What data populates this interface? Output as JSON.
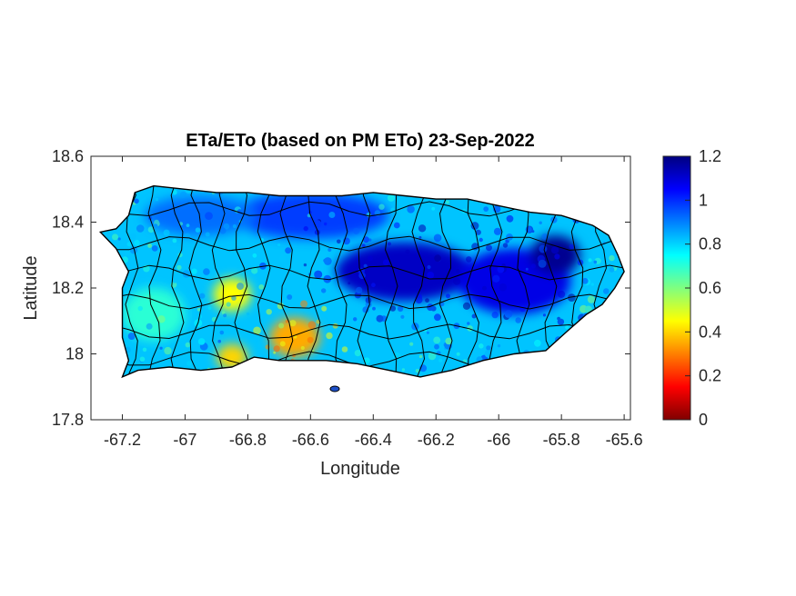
{
  "chart_data": {
    "type": "heatmap",
    "title": "ETa/ETo (based on PM ETo) 23-Sep-2022",
    "xlabel": "Longitude",
    "ylabel": "Latitude",
    "xlim": [
      -67.3,
      -65.58
    ],
    "ylim": [
      17.8,
      18.6
    ],
    "xticks": [
      -67.2,
      -67,
      -66.8,
      -66.6,
      -66.4,
      -66.2,
      -66,
      -65.8,
      -65.6
    ],
    "xtick_labels": [
      "-67.2",
      "-67",
      "-66.8",
      "-66.6",
      "-66.4",
      "-66.2",
      "-66",
      "-65.8",
      "-65.6"
    ],
    "yticks": [
      17.8,
      18,
      18.2,
      18.4,
      18.6
    ],
    "ytick_labels": [
      "17.8",
      "18",
      "18.2",
      "18.4",
      "18.6"
    ],
    "grid": false,
    "colormap": "jet",
    "color_range": [
      0,
      1.2
    ],
    "colorbar_ticks": [
      0,
      0.2,
      0.4,
      0.6,
      0.8,
      1,
      1.2
    ],
    "colorbar_tick_labels": [
      "0",
      "0.2",
      "0.4",
      "0.6",
      "0.8",
      "1",
      "1.2"
    ],
    "colorbar_position": "right",
    "region": "Puerto Rico with municipality boundaries",
    "island_outline": [
      [
        -67.27,
        18.37
      ],
      [
        -67.22,
        18.38
      ],
      [
        -67.18,
        18.42
      ],
      [
        -67.16,
        18.49
      ],
      [
        -67.1,
        18.51
      ],
      [
        -67.0,
        18.5
      ],
      [
        -66.9,
        18.49
      ],
      [
        -66.8,
        18.49
      ],
      [
        -66.7,
        18.48
      ],
      [
        -66.6,
        18.48
      ],
      [
        -66.5,
        18.48
      ],
      [
        -66.4,
        18.49
      ],
      [
        -66.3,
        18.48
      ],
      [
        -66.2,
        18.47
      ],
      [
        -66.1,
        18.47
      ],
      [
        -66.0,
        18.45
      ],
      [
        -65.95,
        18.44
      ],
      [
        -65.9,
        18.43
      ],
      [
        -65.8,
        18.42
      ],
      [
        -65.7,
        18.39
      ],
      [
        -65.65,
        18.36
      ],
      [
        -65.62,
        18.3
      ],
      [
        -65.6,
        18.25
      ],
      [
        -65.63,
        18.2
      ],
      [
        -65.67,
        18.15
      ],
      [
        -65.72,
        18.12
      ],
      [
        -65.78,
        18.07
      ],
      [
        -65.85,
        18.01
      ],
      [
        -65.95,
        18.0
      ],
      [
        -66.05,
        17.98
      ],
      [
        -66.15,
        17.95
      ],
      [
        -66.25,
        17.93
      ],
      [
        -66.35,
        17.95
      ],
      [
        -66.45,
        17.97
      ],
      [
        -66.55,
        17.98
      ],
      [
        -66.62,
        17.98
      ],
      [
        -66.7,
        17.98
      ],
      [
        -66.78,
        17.99
      ],
      [
        -66.85,
        17.96
      ],
      [
        -66.95,
        17.95
      ],
      [
        -67.05,
        17.96
      ],
      [
        -67.15,
        17.95
      ],
      [
        -67.2,
        17.93
      ],
      [
        -67.18,
        17.98
      ],
      [
        -67.2,
        18.05
      ],
      [
        -67.2,
        18.12
      ],
      [
        -67.2,
        18.2
      ],
      [
        -67.18,
        18.25
      ],
      [
        -67.22,
        18.32
      ],
      [
        -67.27,
        18.37
      ]
    ],
    "value_zones": [
      {
        "lon": -66.3,
        "lat": 18.25,
        "rlon": 0.22,
        "rlat": 0.09,
        "value": 1.12
      },
      {
        "lon": -65.95,
        "lat": 18.22,
        "rlon": 0.18,
        "rlat": 0.1,
        "value": 1.08
      },
      {
        "lon": -65.82,
        "lat": 18.3,
        "rlon": 0.08,
        "rlat": 0.06,
        "value": 1.18
      },
      {
        "lon": -66.6,
        "lat": 18.42,
        "rlon": 0.25,
        "rlat": 0.07,
        "value": 0.98
      },
      {
        "lon": -66.95,
        "lat": 18.42,
        "rlon": 0.18,
        "rlat": 0.06,
        "value": 0.92
      },
      {
        "lon": -66.65,
        "lat": 18.05,
        "rlon": 0.08,
        "rlat": 0.06,
        "value": 0.35
      },
      {
        "lon": -66.85,
        "lat": 17.99,
        "rlon": 0.05,
        "rlat": 0.04,
        "value": 0.4
      },
      {
        "lon": -67.1,
        "lat": 18.12,
        "rlon": 0.1,
        "rlat": 0.08,
        "value": 0.7
      },
      {
        "lon": -66.85,
        "lat": 18.18,
        "rlon": 0.06,
        "rlat": 0.05,
        "value": 0.45
      }
    ]
  }
}
